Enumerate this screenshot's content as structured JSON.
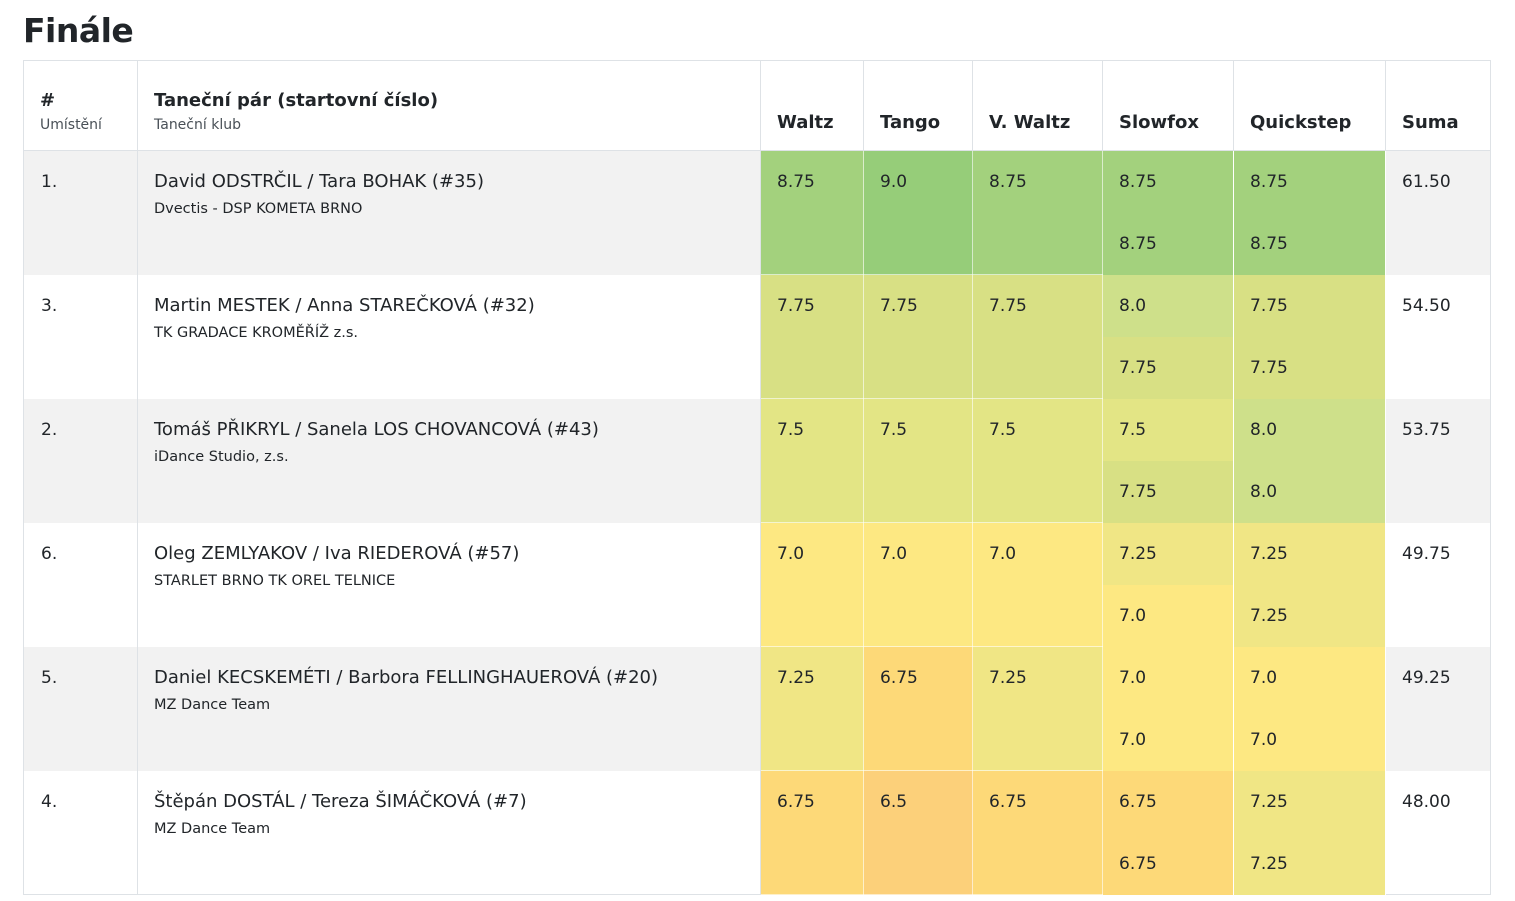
{
  "title": "Finále",
  "headers": {
    "place": "#",
    "place_sub": "Umístění",
    "pair": "Taneční pár (startovní číslo)",
    "pair_sub": "Taneční klub",
    "dances": [
      "Waltz",
      "Tango",
      "V. Waltz",
      "Slowfox",
      "Quickstep"
    ],
    "sum": "Suma"
  },
  "colors": {
    "c875": "#a3d17d",
    "c900": "#96cd79",
    "c800": "#cee08a",
    "c775": "#d8e084",
    "c750": "#e3e585",
    "c725": "#f0e685",
    "c700": "#fde882",
    "c675": "#fdd978",
    "c650": "#fcd07a"
  },
  "rows": [
    {
      "place": "1.",
      "pair": "David ODSTRČIL / Tara BOHAK (#35)",
      "club": "Dvectis - DSP KOMETA BRNO",
      "waltz": "8.75",
      "tango": "9.0",
      "vwaltz": "8.75",
      "slowfox": [
        "8.75",
        "8.75"
      ],
      "quickstep": [
        "8.75",
        "8.75"
      ],
      "sum": "61.50",
      "colors": {
        "waltz": "#a3d17d",
        "tango": "#96cd79",
        "vwaltz": "#a3d17d",
        "slowfox": [
          "#a3d17d",
          "#a3d17d"
        ],
        "quickstep": [
          "#a3d17d",
          "#a3d17d"
        ]
      }
    },
    {
      "place": "3.",
      "pair": "Martin MESTEK / Anna STAREČKOVÁ (#32)",
      "club": "TK GRADACE KROMĚŘÍŽ z.s.",
      "waltz": "7.75",
      "tango": "7.75",
      "vwaltz": "7.75",
      "slowfox": [
        "8.0",
        "7.75"
      ],
      "quickstep": [
        "7.75",
        "7.75"
      ],
      "sum": "54.50",
      "colors": {
        "waltz": "#d8e084",
        "tango": "#d8e084",
        "vwaltz": "#d8e084",
        "slowfox": [
          "#cee08a",
          "#d8e084"
        ],
        "quickstep": [
          "#d8e084",
          "#d8e084"
        ]
      }
    },
    {
      "place": "2.",
      "pair": "Tomáš PŘIKRYL / Sanela LOS CHOVANCOVÁ (#43)",
      "club": "iDance Studio, z.s.",
      "waltz": "7.5",
      "tango": "7.5",
      "vwaltz": "7.5",
      "slowfox": [
        "7.5",
        "7.75"
      ],
      "quickstep": [
        "8.0",
        "8.0"
      ],
      "sum": "53.75",
      "colors": {
        "waltz": "#e3e585",
        "tango": "#e3e585",
        "vwaltz": "#e3e585",
        "slowfox": [
          "#e3e585",
          "#d8e084"
        ],
        "quickstep": [
          "#cee08a",
          "#cee08a"
        ]
      }
    },
    {
      "place": "6.",
      "pair": "Oleg ZEMLYAKOV / Iva RIEDEROVÁ (#57)",
      "club": "STARLET BRNO TK OREL TELNICE",
      "waltz": "7.0",
      "tango": "7.0",
      "vwaltz": "7.0",
      "slowfox": [
        "7.25",
        "7.0"
      ],
      "quickstep": [
        "7.25",
        "7.25"
      ],
      "sum": "49.75",
      "colors": {
        "waltz": "#fde882",
        "tango": "#fde882",
        "vwaltz": "#fde882",
        "slowfox": [
          "#f0e685",
          "#fde882"
        ],
        "quickstep": [
          "#f0e685",
          "#f0e685"
        ]
      }
    },
    {
      "place": "5.",
      "pair": "Daniel KECSKEMÉTI / Barbora FELLINGHAUEROVÁ (#20)",
      "club": "MZ Dance Team",
      "waltz": "7.25",
      "tango": "6.75",
      "vwaltz": "7.25",
      "slowfox": [
        "7.0",
        "7.0"
      ],
      "quickstep": [
        "7.0",
        "7.0"
      ],
      "sum": "49.25",
      "colors": {
        "waltz": "#f0e685",
        "tango": "#fdd978",
        "vwaltz": "#f0e685",
        "slowfox": [
          "#fde882",
          "#fde882"
        ],
        "quickstep": [
          "#fde882",
          "#fde882"
        ]
      }
    },
    {
      "place": "4.",
      "pair": "Štěpán DOSTÁL / Tereza ŠIMÁČKOVÁ (#7)",
      "club": "MZ Dance Team",
      "waltz": "6.75",
      "tango": "6.5",
      "vwaltz": "6.75",
      "slowfox": [
        "6.75",
        "6.75"
      ],
      "quickstep": [
        "7.25",
        "7.25"
      ],
      "sum": "48.00",
      "colors": {
        "waltz": "#fdd978",
        "tango": "#fcd07a",
        "vwaltz": "#fdd978",
        "slowfox": [
          "#fdd978",
          "#fdd978"
        ],
        "quickstep": [
          "#f0e685",
          "#f0e685"
        ]
      }
    }
  ]
}
